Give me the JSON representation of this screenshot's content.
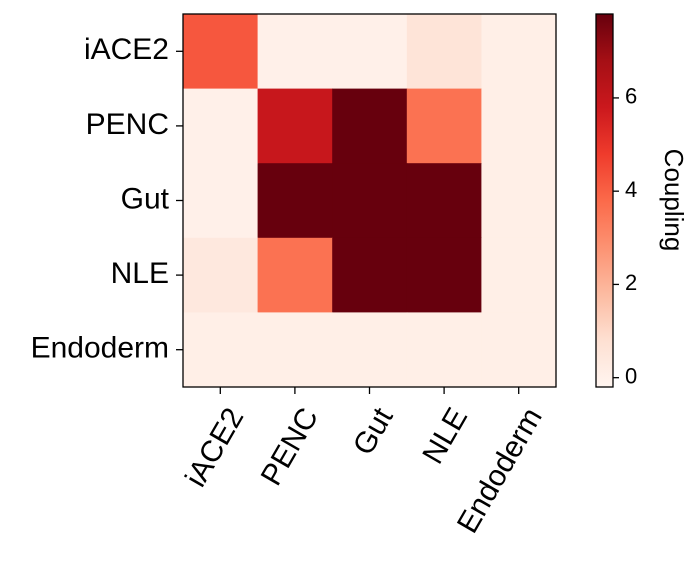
{
  "chart_data": {
    "type": "heatmap",
    "row_labels": [
      "iACE2",
      "PENC",
      "Gut",
      "NLE",
      "Endoderm"
    ],
    "col_labels": [
      "iACE2",
      "PENC",
      "Gut",
      "NLE",
      "Endoderm"
    ],
    "values": [
      [
        4.2,
        0.05,
        0.05,
        0.6,
        0.1
      ],
      [
        0.05,
        5.9,
        7.8,
        3.6,
        0.1
      ],
      [
        0.05,
        7.8,
        7.8,
        7.8,
        0.1
      ],
      [
        0.4,
        3.6,
        7.8,
        7.8,
        0.1
      ],
      [
        0.1,
        0.1,
        0.1,
        0.1,
        0.1
      ]
    ],
    "colorbar": {
      "label": "Coupling",
      "min": -0.2,
      "max": 7.8,
      "ticks": [
        0,
        2,
        4,
        6
      ],
      "tick_labels": [
        "0",
        "2",
        "4",
        "6"
      ]
    },
    "colormap": "Reds",
    "grid": false
  },
  "colors": {
    "colormap_stops": [
      "#fff5f0",
      "#fee0d2",
      "#fcbba1",
      "#fc9272",
      "#fb6a4a",
      "#ef3b2c",
      "#cb181d",
      "#a50f15",
      "#67000d"
    ]
  }
}
